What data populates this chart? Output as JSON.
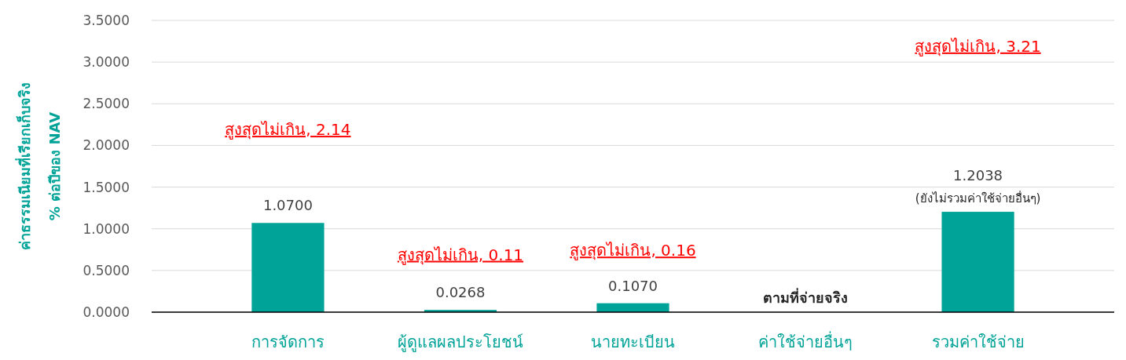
{
  "chart_data": {
    "type": "bar",
    "ylabel": "ค่าธรรมเนียมที่เรียกเก็บจริง\n% ต่อปีของ NAV",
    "categories": [
      "การจัดการ",
      "ผู้ดูแลผลประโยชน์",
      "นายทะเบียน",
      "ค่าใช้จ่ายอื่นๆ",
      "รวมค่าใช้จ่าย"
    ],
    "values": [
      1.07,
      0.0268,
      0.107,
      null,
      1.2038
    ],
    "value_labels": [
      "1.0700",
      "0.0268",
      "0.1070",
      "ตามที่จ่ายจริง",
      "1.2038"
    ],
    "color": "#00a398",
    "ylim": [
      0,
      3.5
    ],
    "yticks": [
      {
        "value": 0,
        "label": "0.0000"
      },
      {
        "value": 0.5,
        "label": "0.5000"
      },
      {
        "value": 1,
        "label": "1.0000"
      },
      {
        "value": 1.5,
        "label": "1.5000"
      },
      {
        "value": 2,
        "label": "2.0000"
      },
      {
        "value": 2.5,
        "label": "2.5000"
      },
      {
        "value": 3,
        "label": "3.0000"
      },
      {
        "value": 3.5,
        "label": "3.5000"
      }
    ],
    "grid": "y",
    "annotations": [
      "สูงสุดไม่เกิน, 2.14",
      "สูงสุดไม่เกิน, 0.11",
      "สูงสุดไม่เกิน, 0.16",
      "สูงสุดไม่เกิน, 3.21",
      "(ยังไม่รวมค่าใช้จ่ายอื่นๆ)"
    ]
  }
}
